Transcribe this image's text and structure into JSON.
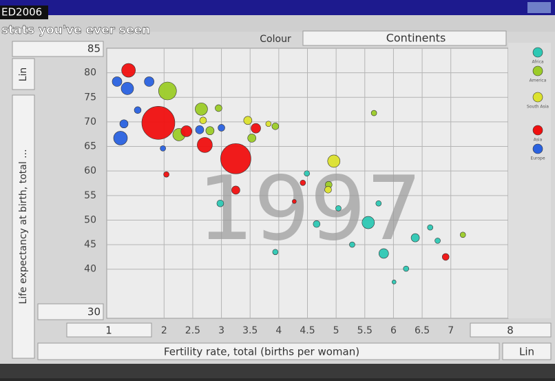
{
  "overlay": {
    "event": "ED2006",
    "caption": "stats you've ever seen"
  },
  "toolbar": {
    "colour_label": "Colour",
    "colour_value": "Continents"
  },
  "chart_data": {
    "type": "bubble",
    "year": "1997",
    "ylabel": "Life expectancy at birth, total ...",
    "xlabel": "Fertility rate, total (births per woman)",
    "yscale": "Lin",
    "xscale": "Lin",
    "xlim": [
      1,
      8
    ],
    "ylim": [
      30,
      85
    ],
    "xticks": [
      2,
      2.5,
      3,
      3.5,
      4,
      4.5,
      5,
      5.5,
      6,
      6.5,
      7
    ],
    "yticks": [
      40,
      45,
      50,
      55,
      60,
      65,
      70,
      75,
      80
    ],
    "grid": true,
    "series": [
      {
        "name": "Africa",
        "color": "#2ec8b4",
        "x": [
          5.56,
          5.83,
          6.38,
          2.98,
          4.66,
          5.74,
          5.04,
          5.28,
          6.77,
          4.49,
          3.94,
          6.22,
          6.64,
          6.01
        ],
        "values": [
          49.5,
          43.2,
          46.4,
          53.4,
          49.2,
          53.4,
          52.4,
          45,
          45.8,
          59.5,
          43.5,
          40.1,
          48.5,
          37.4
        ],
        "sizes": [
          173,
          105,
          77,
          53,
          53,
          34,
          34,
          34,
          34,
          34,
          34,
          34,
          34,
          19
        ]
      },
      {
        "name": "America",
        "color": "#9ccc28",
        "x": [
          2.06,
          2.65,
          2.26,
          2.8,
          2.95,
          3.53,
          3.94,
          4.87,
          5.66,
          7.21
        ],
        "values": [
          76.3,
          72.6,
          67.4,
          68.2,
          72.8,
          66.7,
          69.1,
          57.2,
          71.8,
          47
        ],
        "sizes": [
          361,
          173,
          173,
          77,
          53,
          77,
          53,
          53,
          34,
          34
        ]
      },
      {
        "name": "South Asia",
        "color": "#dce22e",
        "x": [
          4.96,
          3.46,
          2.68,
          4.86,
          3.82
        ],
        "values": [
          62,
          70.3,
          70.3,
          56.2,
          69.6
        ],
        "sizes": [
          173,
          77,
          53,
          53,
          34
        ]
      },
      {
        "name": "Asia",
        "color": "#f01010",
        "x": [
          1.38,
          1.9,
          3.25,
          2.71,
          2.39,
          3.6,
          3.25,
          2.04,
          4.42,
          6.91,
          4.27
        ],
        "values": [
          80.5,
          69.8,
          62.5,
          65.3,
          68.1,
          68.7,
          56.1,
          59.3,
          57.6,
          42.5,
          53.8
        ],
        "sizes": [
          214,
          1230,
          1034,
          259,
          137,
          105,
          77,
          34,
          34,
          53,
          19
        ]
      },
      {
        "name": "Europe",
        "color": "#2a62e0",
        "x": [
          1.24,
          1.36,
          1.18,
          1.74,
          1.54,
          2.62,
          3.0,
          1.98,
          1.3
        ],
        "values": [
          66.7,
          76.8,
          78.2,
          78.2,
          72.4,
          68.4,
          68.8,
          64.6,
          69.6
        ],
        "sizes": [
          214,
          173,
          105,
          105,
          53,
          77,
          53,
          34,
          77
        ]
      }
    ]
  }
}
